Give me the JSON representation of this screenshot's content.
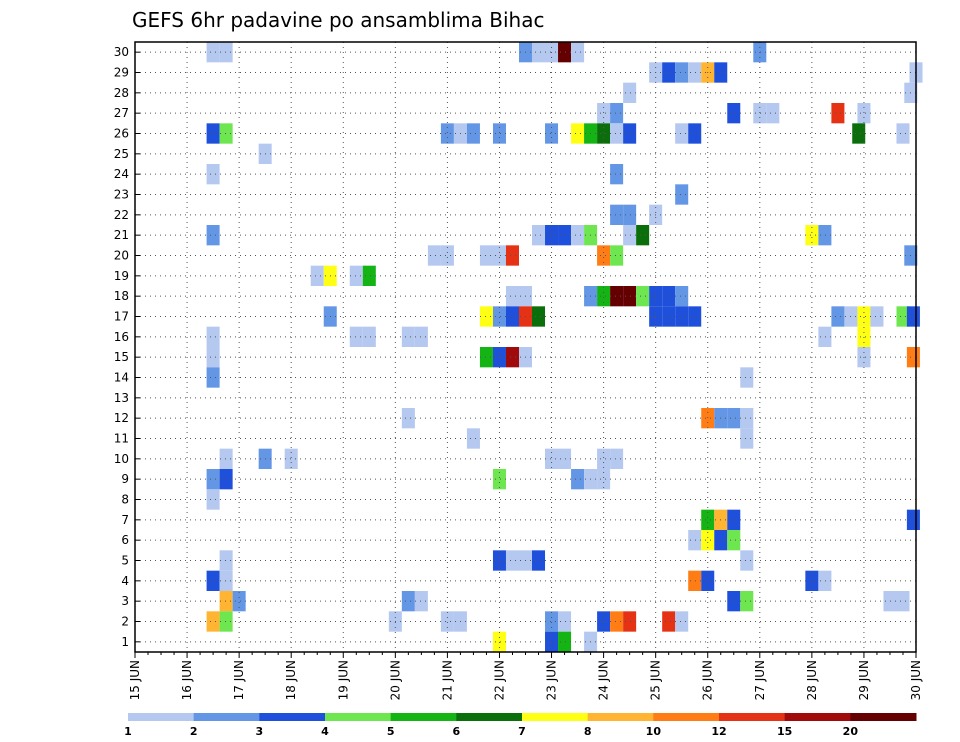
{
  "chart_data": {
    "type": "heatmap",
    "title": "GEFS 6hr padavine po ansamblima Bihac",
    "x_ticks": [
      "15 JUN",
      "16 JUN",
      "17 JUN",
      "18 JUN",
      "19 JUN",
      "20 JUN",
      "21 JUN",
      "22 JUN",
      "23 JUN",
      "24 JUN",
      "25 JUN",
      "26 JUN",
      "27 JUN",
      "28 JUN",
      "29 JUN",
      "30 JUN"
    ],
    "y_ticks": [
      "1",
      "2",
      "3",
      "4",
      "5",
      "6",
      "7",
      "8",
      "9",
      "10",
      "11",
      "12",
      "13",
      "14",
      "15",
      "16",
      "17",
      "18",
      "19",
      "20",
      "21",
      "22",
      "23",
      "24",
      "25",
      "26",
      "27",
      "28",
      "29",
      "30"
    ],
    "xlim": [
      15,
      30
    ],
    "ylim": [
      0.5,
      30.5
    ],
    "grid": true,
    "colorbar": {
      "labels": [
        "1",
        "2",
        "3",
        "4",
        "5",
        "6",
        "7",
        "8",
        "10",
        "12",
        "15",
        "20"
      ],
      "colors": [
        "#b4c8f0",
        "#6496e6",
        "#1e50dc",
        "#6ee650",
        "#14b414",
        "#0a6e0a",
        "#ffff14",
        "#ffb432",
        "#ff7d14",
        "#e63214",
        "#a00a0a",
        "#640000"
      ]
    },
    "cells": [
      [
        1.5,
        30,
        0
      ],
      [
        1.75,
        30,
        0
      ],
      [
        7.5,
        30,
        1
      ],
      [
        7.75,
        30,
        0
      ],
      [
        8,
        30,
        0
      ],
      [
        8.25,
        30,
        11
      ],
      [
        8.5,
        30,
        0
      ],
      [
        12,
        30,
        1
      ],
      [
        10,
        29,
        0
      ],
      [
        10.25,
        29,
        2
      ],
      [
        10.5,
        29,
        1
      ],
      [
        10.75,
        29,
        0
      ],
      [
        11,
        29,
        7
      ],
      [
        11.25,
        29,
        2
      ],
      [
        15,
        29,
        0
      ],
      [
        9.5,
        28,
        0
      ],
      [
        14.9,
        28,
        0
      ],
      [
        9,
        27,
        0
      ],
      [
        9.25,
        27,
        1
      ],
      [
        11.5,
        27,
        2
      ],
      [
        12,
        27,
        0
      ],
      [
        12.25,
        27,
        0
      ],
      [
        13.5,
        27,
        9
      ],
      [
        14,
        27,
        0
      ],
      [
        1.5,
        26,
        2
      ],
      [
        1.75,
        26,
        3
      ],
      [
        6,
        26,
        1
      ],
      [
        6.25,
        26,
        0
      ],
      [
        6.5,
        26,
        1
      ],
      [
        7,
        26,
        1
      ],
      [
        8,
        26,
        1
      ],
      [
        8.5,
        26,
        6
      ],
      [
        8.75,
        26,
        4
      ],
      [
        9,
        26,
        5
      ],
      [
        9.25,
        26,
        0
      ],
      [
        9.5,
        26,
        2
      ],
      [
        10.5,
        26,
        0
      ],
      [
        10.75,
        26,
        2
      ],
      [
        13.9,
        26,
        5
      ],
      [
        14.75,
        26,
        0
      ],
      [
        2.5,
        25,
        0
      ],
      [
        1.5,
        24,
        0
      ],
      [
        9.25,
        24,
        1
      ],
      [
        10.5,
        23,
        1
      ],
      [
        9.25,
        22,
        1
      ],
      [
        9.5,
        22,
        1
      ],
      [
        10,
        22,
        0
      ],
      [
        1.5,
        21,
        1
      ],
      [
        7.75,
        21,
        0
      ],
      [
        8,
        21,
        2
      ],
      [
        8.25,
        21,
        2
      ],
      [
        8.5,
        21,
        0
      ],
      [
        8.75,
        21,
        3
      ],
      [
        9.5,
        21,
        0
      ],
      [
        9.75,
        21,
        5
      ],
      [
        13,
        21,
        6
      ],
      [
        13.25,
        21,
        1
      ],
      [
        5.75,
        20,
        0
      ],
      [
        6,
        20,
        0
      ],
      [
        6.75,
        20,
        0
      ],
      [
        7,
        20,
        0
      ],
      [
        7.25,
        20,
        9
      ],
      [
        9,
        20,
        8
      ],
      [
        9.25,
        20,
        3
      ],
      [
        14.9,
        20,
        1
      ],
      [
        3.5,
        19,
        0
      ],
      [
        3.75,
        19,
        6
      ],
      [
        4.25,
        19,
        0
      ],
      [
        4.5,
        19,
        4
      ],
      [
        7.25,
        18,
        0
      ],
      [
        7.5,
        18,
        0
      ],
      [
        8.75,
        18,
        1
      ],
      [
        9,
        18,
        4
      ],
      [
        9.25,
        18,
        11
      ],
      [
        9.5,
        18,
        11
      ],
      [
        9.75,
        18,
        3
      ],
      [
        10,
        18,
        2
      ],
      [
        10.25,
        18,
        2
      ],
      [
        10.5,
        18,
        1
      ],
      [
        3.75,
        17,
        1
      ],
      [
        6.75,
        17,
        6
      ],
      [
        7,
        17,
        1
      ],
      [
        7.25,
        17,
        2
      ],
      [
        7.5,
        17,
        9
      ],
      [
        7.75,
        17,
        5
      ],
      [
        10,
        17,
        2
      ],
      [
        10.25,
        17,
        2
      ],
      [
        10.5,
        17,
        2
      ],
      [
        10.75,
        17,
        2
      ],
      [
        13.5,
        17,
        1
      ],
      [
        13.75,
        17,
        0
      ],
      [
        14,
        17,
        6
      ],
      [
        14.25,
        17,
        0
      ],
      [
        14.75,
        17,
        3
      ],
      [
        14.95,
        17,
        2
      ],
      [
        1.5,
        16,
        0
      ],
      [
        4.25,
        16,
        0
      ],
      [
        4.5,
        16,
        0
      ],
      [
        5.25,
        16,
        0
      ],
      [
        5.5,
        16,
        0
      ],
      [
        13.25,
        16,
        0
      ],
      [
        14,
        16,
        6
      ],
      [
        1.5,
        15,
        0
      ],
      [
        6.75,
        15,
        4
      ],
      [
        7,
        15,
        2
      ],
      [
        7.25,
        15,
        10
      ],
      [
        7.5,
        15,
        0
      ],
      [
        14,
        15,
        0
      ],
      [
        14.95,
        15,
        8
      ],
      [
        1.5,
        14,
        1
      ],
      [
        11.75,
        14,
        0
      ],
      [
        11,
        12,
        8
      ],
      [
        11.25,
        12,
        1
      ],
      [
        11.5,
        12,
        1
      ],
      [
        11.75,
        12,
        0
      ],
      [
        5.25,
        12,
        0
      ],
      [
        6.5,
        11,
        0
      ],
      [
        11.75,
        11,
        0
      ],
      [
        1.75,
        10,
        0
      ],
      [
        2.5,
        10,
        1
      ],
      [
        3,
        10,
        0
      ],
      [
        8,
        10,
        0
      ],
      [
        8.25,
        10,
        0
      ],
      [
        9,
        10,
        0
      ],
      [
        9.25,
        10,
        0
      ],
      [
        1.5,
        9,
        1
      ],
      [
        1.75,
        9,
        2
      ],
      [
        7,
        9,
        3
      ],
      [
        8.5,
        9,
        1
      ],
      [
        8.75,
        9,
        0
      ],
      [
        9,
        9,
        0
      ],
      [
        1.5,
        8,
        0
      ],
      [
        11,
        7,
        4
      ],
      [
        11.25,
        7,
        7
      ],
      [
        11.5,
        7,
        2
      ],
      [
        14.95,
        7,
        2
      ],
      [
        10.75,
        6,
        0
      ],
      [
        11,
        6,
        6
      ],
      [
        11.25,
        6,
        2
      ],
      [
        11.5,
        6,
        3
      ],
      [
        1.75,
        5,
        0
      ],
      [
        7,
        5,
        2
      ],
      [
        7.25,
        5,
        0
      ],
      [
        7.5,
        5,
        0
      ],
      [
        7.75,
        5,
        2
      ],
      [
        11.75,
        5,
        0
      ],
      [
        1.5,
        4,
        2
      ],
      [
        1.75,
        4,
        0
      ],
      [
        10.75,
        4,
        8
      ],
      [
        11,
        4,
        2
      ],
      [
        13,
        4,
        2
      ],
      [
        13.25,
        4,
        0
      ],
      [
        1.75,
        3,
        7
      ],
      [
        2,
        3,
        1
      ],
      [
        5.25,
        3,
        1
      ],
      [
        5.5,
        3,
        0
      ],
      [
        11.5,
        3,
        2
      ],
      [
        11.75,
        3,
        3
      ],
      [
        14.5,
        3,
        0
      ],
      [
        14.75,
        3,
        0
      ],
      [
        1.5,
        2,
        7
      ],
      [
        1.75,
        2,
        3
      ],
      [
        5,
        2,
        0
      ],
      [
        6,
        2,
        0
      ],
      [
        6.25,
        2,
        0
      ],
      [
        8,
        2,
        1
      ],
      [
        8.25,
        2,
        0
      ],
      [
        9,
        2,
        2
      ],
      [
        9.25,
        2,
        8
      ],
      [
        9.5,
        2,
        9
      ],
      [
        10.25,
        2,
        9
      ],
      [
        10.5,
        2,
        0
      ],
      [
        7,
        1,
        6
      ],
      [
        8,
        1,
        2
      ],
      [
        8.25,
        1,
        4
      ],
      [
        8.75,
        1,
        0
      ]
    ]
  }
}
